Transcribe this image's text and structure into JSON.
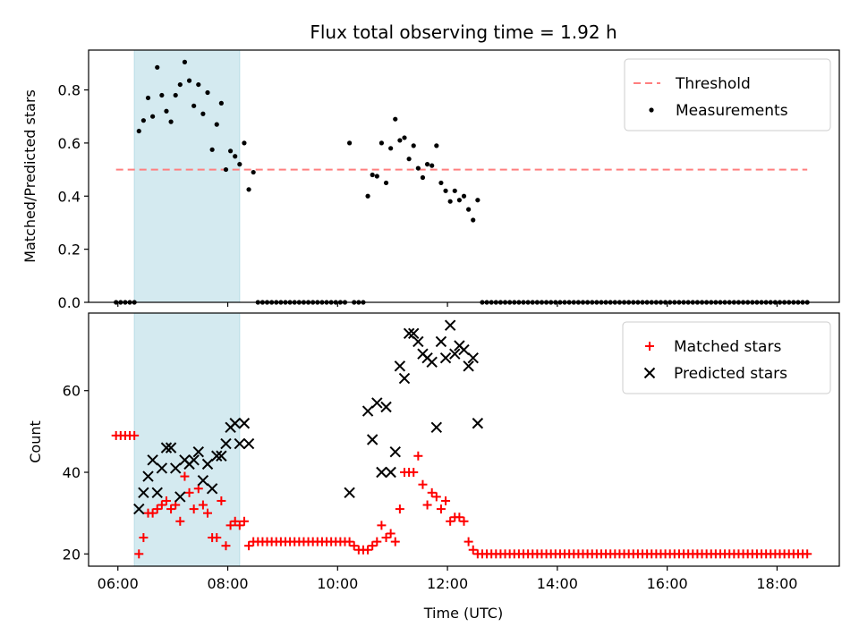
{
  "chart_data": [
    {
      "type": "scatter",
      "title": "Flux total observing time = 1.92 h",
      "xlabel": "",
      "ylabel": "Matched/Predicted stars",
      "xlim": [
        "05:28",
        "19:08"
      ],
      "ylim": [
        0,
        0.95
      ],
      "yticks": [
        0.0,
        0.2,
        0.4,
        0.6,
        0.8
      ],
      "ytick_labels": [
        "0.0",
        "0.2",
        "0.4",
        "0.6",
        "0.8"
      ],
      "highlight_span": [
        "06:18",
        "08:13"
      ],
      "highlight_color": "#d4eaf0",
      "legend": {
        "position": "upper right",
        "entries": [
          {
            "label": "Threshold",
            "marker": "dashed-line",
            "color": "#ff7f7f"
          },
          {
            "label": "Measurements",
            "marker": "dot",
            "color": "#000000"
          }
        ]
      },
      "series": [
        {
          "name": "Threshold",
          "style": "dashed-line",
          "color": "#ff7f7f",
          "x": [
            "05:58",
            "18:33"
          ],
          "y": [
            0.5,
            0.5
          ]
        },
        {
          "name": "Measurements",
          "style": "dot",
          "color": "#000000",
          "x": [
            "05:58",
            "06:03",
            "06:08",
            "06:13",
            "06:18",
            "06:23",
            "06:28",
            "06:33",
            "06:38",
            "06:43",
            "06:48",
            "06:53",
            "06:58",
            "07:03",
            "07:08",
            "07:13",
            "07:18",
            "07:23",
            "07:28",
            "07:33",
            "07:38",
            "07:43",
            "07:48",
            "07:53",
            "07:58",
            "08:03",
            "08:08",
            "08:13",
            "08:18",
            "08:23",
            "08:28",
            "08:33",
            "08:38",
            "08:43",
            "08:48",
            "08:53",
            "08:58",
            "09:03",
            "09:08",
            "09:13",
            "09:18",
            "09:23",
            "09:28",
            "09:33",
            "09:38",
            "09:43",
            "09:48",
            "09:53",
            "09:58",
            "10:03",
            "10:08",
            "10:13",
            "10:18",
            "10:23",
            "10:28",
            "10:33",
            "10:38",
            "10:43",
            "10:48",
            "10:53",
            "10:58",
            "11:03",
            "11:08",
            "11:13",
            "11:18",
            "11:23",
            "11:28",
            "11:33",
            "11:38",
            "11:43",
            "11:48",
            "11:53",
            "11:58",
            "12:03",
            "12:08",
            "12:13",
            "12:18",
            "12:23",
            "12:28",
            "12:33",
            "12:38",
            "12:43",
            "12:48",
            "12:53",
            "12:58",
            "13:03",
            "13:08",
            "13:13",
            "13:18",
            "13:23",
            "13:28",
            "13:33",
            "13:38",
            "13:43",
            "13:48",
            "13:53",
            "13:58",
            "14:03",
            "14:08",
            "14:13",
            "14:18",
            "14:23",
            "14:28",
            "14:33",
            "14:38",
            "14:43",
            "14:48",
            "14:53",
            "14:58",
            "15:03",
            "15:08",
            "15:13",
            "15:18",
            "15:23",
            "15:28",
            "15:33",
            "15:38",
            "15:43",
            "15:48",
            "15:53",
            "15:58",
            "16:03",
            "16:08",
            "16:13",
            "16:18",
            "16:23",
            "16:28",
            "16:33",
            "16:38",
            "16:43",
            "16:48",
            "16:53",
            "16:58",
            "17:03",
            "17:08",
            "17:13",
            "17:18",
            "17:23",
            "17:28",
            "17:33",
            "17:38",
            "17:43",
            "17:48",
            "17:53",
            "17:58",
            "18:03",
            "18:08",
            "18:13",
            "18:18",
            "18:23",
            "18:28",
            "18:33"
          ],
          "y": [
            0,
            0,
            0,
            0,
            0,
            0.645,
            0.685,
            0.77,
            0.7,
            0.885,
            0.78,
            0.72,
            0.68,
            0.78,
            0.82,
            0.905,
            0.835,
            0.74,
            0.82,
            0.71,
            0.79,
            0.575,
            0.67,
            0.75,
            0.5,
            0.57,
            0.55,
            0.52,
            0.6,
            0.425,
            0.49,
            0,
            0,
            0,
            0,
            0,
            0,
            0,
            0,
            0,
            0,
            0,
            0,
            0,
            0,
            0,
            0,
            0,
            0,
            0,
            0,
            0.6,
            0,
            0,
            0,
            0.4,
            0.48,
            0.475,
            0.6,
            0.45,
            0.58,
            0.69,
            0.61,
            0.62,
            0.54,
            0.59,
            0.505,
            0.47,
            0.52,
            0.515,
            0.59,
            0.45,
            0.42,
            0.38,
            0.42,
            0.385,
            0.4,
            0.35,
            0.31,
            0.385,
            0,
            0,
            0,
            0,
            0,
            0,
            0,
            0,
            0,
            0,
            0,
            0,
            0,
            0,
            0,
            0,
            0,
            0,
            0,
            0,
            0,
            0,
            0,
            0,
            0,
            0,
            0,
            0,
            0,
            0,
            0,
            0,
            0,
            0,
            0,
            0,
            0,
            0,
            0,
            0,
            0,
            0,
            0,
            0,
            0,
            0,
            0,
            0,
            0,
            0,
            0,
            0,
            0,
            0,
            0,
            0,
            0,
            0,
            0,
            0,
            0,
            0,
            0,
            0,
            0,
            0,
            0,
            0,
            0,
            0,
            0,
            0
          ]
        }
      ]
    },
    {
      "type": "scatter",
      "title": "",
      "xlabel": "Time (UTC)",
      "ylabel": "Count",
      "xlim": [
        "05:28",
        "19:08"
      ],
      "ylim": [
        17,
        79
      ],
      "yticks": [
        20,
        40,
        60
      ],
      "ytick_labels": [
        "20",
        "40",
        "60"
      ],
      "xticks": [
        "06:00",
        "08:00",
        "10:00",
        "12:00",
        "14:00",
        "16:00",
        "18:00"
      ],
      "xtick_labels": [
        "06:00",
        "08:00",
        "10:00",
        "12:00",
        "14:00",
        "16:00",
        "18:00"
      ],
      "highlight_span": [
        "06:18",
        "08:13"
      ],
      "highlight_color": "#d4eaf0",
      "legend": {
        "position": "upper right",
        "entries": [
          {
            "label": "Matched stars",
            "marker": "plus",
            "color": "#ff0000"
          },
          {
            "label": "Predicted stars",
            "marker": "x",
            "color": "#000000"
          }
        ]
      },
      "series": [
        {
          "name": "Matched stars",
          "style": "plus",
          "color": "#ff0000",
          "x": [
            "05:58",
            "06:03",
            "06:08",
            "06:13",
            "06:18",
            "06:23",
            "06:28",
            "06:33",
            "06:38",
            "06:43",
            "06:48",
            "06:53",
            "06:58",
            "07:03",
            "07:08",
            "07:13",
            "07:18",
            "07:23",
            "07:28",
            "07:33",
            "07:38",
            "07:43",
            "07:48",
            "07:53",
            "07:58",
            "08:03",
            "08:08",
            "08:13",
            "08:18",
            "08:23",
            "08:28",
            "08:33",
            "08:38",
            "08:43",
            "08:48",
            "08:53",
            "08:58",
            "09:03",
            "09:08",
            "09:13",
            "09:18",
            "09:23",
            "09:28",
            "09:33",
            "09:38",
            "09:43",
            "09:48",
            "09:53",
            "09:58",
            "10:03",
            "10:08",
            "10:13",
            "10:18",
            "10:23",
            "10:28",
            "10:33",
            "10:38",
            "10:43",
            "10:48",
            "10:53",
            "10:58",
            "11:03",
            "11:08",
            "11:13",
            "11:18",
            "11:23",
            "11:28",
            "11:33",
            "11:38",
            "11:43",
            "11:48",
            "11:53",
            "11:58",
            "12:03",
            "12:08",
            "12:13",
            "12:18",
            "12:23",
            "12:28",
            "12:33",
            "12:38",
            "12:43",
            "12:48",
            "12:53",
            "12:58",
            "13:03",
            "13:08",
            "13:13",
            "13:18",
            "13:23",
            "13:28",
            "13:33",
            "13:38",
            "13:43",
            "13:48",
            "13:53",
            "13:58",
            "14:03",
            "14:08",
            "14:13",
            "14:18",
            "14:23",
            "14:28",
            "14:33",
            "14:38",
            "14:43",
            "14:48",
            "14:53",
            "14:58",
            "15:03",
            "15:08",
            "15:13",
            "15:18",
            "15:23",
            "15:28",
            "15:33",
            "15:38",
            "15:43",
            "15:48",
            "15:53",
            "15:58",
            "16:03",
            "16:08",
            "16:13",
            "16:18",
            "16:23",
            "16:28",
            "16:33",
            "16:38",
            "16:43",
            "16:48",
            "16:53",
            "16:58",
            "17:03",
            "17:08",
            "17:13",
            "17:18",
            "17:23",
            "17:28",
            "17:33",
            "17:38",
            "17:43",
            "17:48",
            "17:53",
            "17:58",
            "18:03",
            "18:08",
            "18:13",
            "18:18",
            "18:23",
            "18:28",
            "18:33"
          ],
          "y": [
            49,
            49,
            49,
            49,
            49,
            20,
            24,
            30,
            30,
            31,
            32,
            33,
            31,
            32,
            28,
            39,
            35,
            31,
            36,
            32,
            30,
            24,
            24,
            33,
            22,
            27,
            28,
            27,
            28,
            22,
            23,
            23,
            23,
            23,
            23,
            23,
            23,
            23,
            23,
            23,
            23,
            23,
            23,
            23,
            23,
            23,
            23,
            23,
            23,
            23,
            23,
            23,
            22,
            21,
            21,
            21,
            22,
            23,
            27,
            24,
            25,
            23,
            31,
            40,
            40,
            40,
            44,
            37,
            32,
            35,
            34,
            31,
            33,
            28,
            29,
            29,
            28,
            23,
            21,
            20,
            20,
            20,
            20,
            20,
            20,
            20,
            20,
            20,
            20,
            20,
            20,
            20,
            20,
            20,
            20,
            20,
            20,
            20,
            20,
            20,
            20,
            20,
            20,
            20,
            20,
            20,
            20,
            20,
            20,
            20,
            20,
            20,
            20,
            20,
            20,
            20,
            20,
            20,
            20,
            20,
            20,
            20,
            20,
            20,
            20,
            20,
            20,
            20,
            20,
            20,
            20,
            20,
            20,
            20,
            20,
            20,
            20,
            20,
            20,
            20,
            20,
            20,
            20,
            20,
            20,
            20,
            20,
            20,
            20,
            20,
            20,
            20
          ]
        },
        {
          "name": "Predicted stars",
          "style": "x",
          "color": "#000000",
          "x": [
            "06:23",
            "06:28",
            "06:33",
            "06:38",
            "06:43",
            "06:48",
            "06:53",
            "06:58",
            "07:03",
            "07:08",
            "07:13",
            "07:18",
            "07:23",
            "07:28",
            "07:33",
            "07:38",
            "07:43",
            "07:48",
            "07:53",
            "07:58",
            "08:03",
            "08:08",
            "08:13",
            "08:18",
            "08:23",
            "10:13",
            "10:33",
            "10:38",
            "10:43",
            "10:48",
            "10:53",
            "10:58",
            "11:03",
            "11:08",
            "11:13",
            "11:18",
            "11:23",
            "11:28",
            "11:33",
            "11:38",
            "11:43",
            "11:48",
            "11:53",
            "11:58",
            "12:03",
            "12:08",
            "12:13",
            "12:18",
            "12:23",
            "12:28",
            "12:33"
          ],
          "y": [
            31,
            35,
            39,
            43,
            35,
            41,
            46,
            46,
            41,
            34,
            43,
            42,
            43,
            45,
            38,
            42,
            36,
            44,
            44,
            47,
            51,
            52,
            47,
            52,
            47,
            35,
            55,
            48,
            57,
            40,
            56,
            40,
            45,
            66,
            63,
            74,
            74,
            72,
            69,
            68,
            67,
            51,
            72,
            68,
            76,
            69,
            71,
            70,
            66,
            68,
            52
          ]
        }
      ]
    }
  ]
}
